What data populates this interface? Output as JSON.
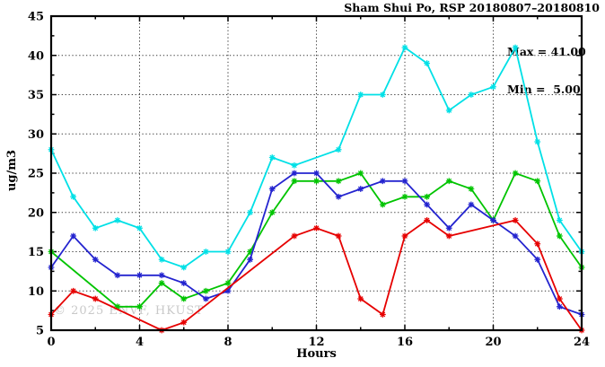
{
  "chart_data": {
    "type": "line",
    "title": "Sham Shui Po, RSP 20180807–20180810",
    "xlabel": "Hours",
    "ylabel": "ug/m3",
    "xlim": [
      0,
      24
    ],
    "ylim": [
      5,
      45
    ],
    "xticks": [
      0,
      4,
      8,
      12,
      16,
      20,
      24
    ],
    "xminor_ticks": [
      2,
      6,
      10,
      14,
      18,
      22
    ],
    "yticks": [
      5,
      10,
      15,
      20,
      25,
      30,
      35,
      40,
      45
    ],
    "yminor_ticks": [
      7.5,
      12.5,
      17.5,
      22.5,
      27.5,
      32.5,
      37.5,
      42.5
    ],
    "grid": "dotted",
    "legend": "none",
    "x": [
      0,
      1,
      2,
      3,
      4,
      5,
      6,
      7,
      8,
      9,
      10,
      11,
      12,
      13,
      14,
      15,
      16,
      17,
      18,
      19,
      20,
      21,
      22,
      23,
      24
    ],
    "series": [
      {
        "name": "cyan",
        "color": "#00E0E6",
        "values": [
          28,
          22,
          18,
          19,
          18,
          14,
          13,
          15,
          15,
          20,
          27,
          26,
          null,
          28,
          35,
          35,
          41,
          39,
          33,
          35,
          36,
          41,
          29,
          19,
          15
        ]
      },
      {
        "name": "green",
        "color": "#00C400",
        "values": [
          15,
          null,
          null,
          8,
          8,
          11,
          9,
          10,
          11,
          15,
          20,
          24,
          24,
          24,
          25,
          21,
          22,
          22,
          24,
          23,
          19,
          25,
          24,
          17,
          13
        ]
      },
      {
        "name": "blue",
        "color": "#2424CF",
        "values": [
          13,
          17,
          14,
          12,
          12,
          12,
          11,
          9,
          10,
          14,
          23,
          25,
          25,
          22,
          23,
          24,
          24,
          21,
          18,
          21,
          19,
          17,
          14,
          8,
          7
        ]
      },
      {
        "name": "red",
        "color": "#E60000",
        "values": [
          7,
          10,
          9,
          null,
          null,
          5,
          6,
          null,
          null,
          null,
          null,
          17,
          18,
          17,
          9,
          7,
          17,
          19,
          17,
          null,
          null,
          19,
          16,
          9,
          5
        ]
      }
    ],
    "annotations": {
      "max_label": "Max = 41.00",
      "min_label": "Min =  5.00"
    },
    "watermark": "© 2025 ENVF, HKUST",
    "frame_color": "#000000",
    "grid_color": "#3a3a3a"
  }
}
